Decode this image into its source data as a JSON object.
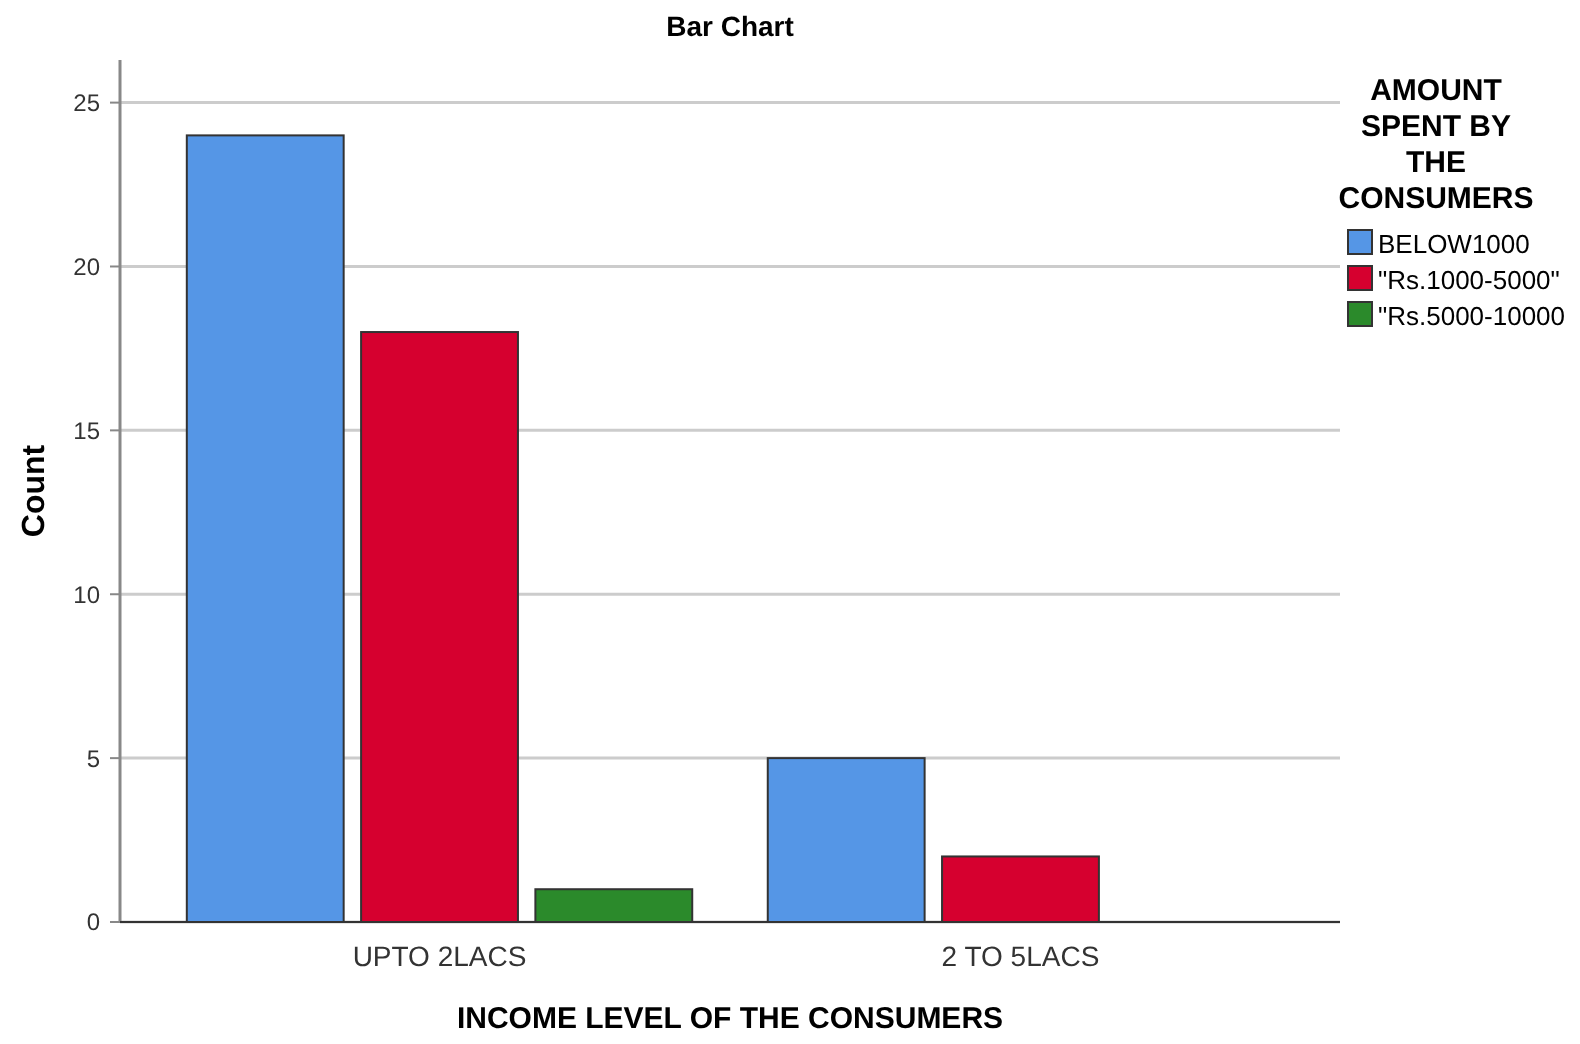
{
  "chart_data": {
    "type": "bar",
    "title": "Bar Chart",
    "xlabel": "INCOME LEVEL OF THE CONSUMERS",
    "ylabel": "Count",
    "legend_title": "AMOUNT SPENT BY THE CONSUMERS",
    "categories": [
      "UPTO 2LACS",
      "2 TO 5LACS"
    ],
    "series": [
      {
        "name": "BELOW1000",
        "color": "#5596e6",
        "values": [
          24,
          5
        ]
      },
      {
        "name": "\"Rs.1000-5000\"",
        "color": "#d6002f",
        "values": [
          18,
          2
        ]
      },
      {
        "name": "\"Rs.5000-10000",
        "color": "#2b8a2b",
        "values": [
          1,
          null
        ]
      }
    ],
    "ylim": [
      0,
      26.3
    ],
    "yticks": [
      0,
      5,
      10,
      15,
      20,
      25
    ],
    "grid": "y",
    "legend": "right"
  }
}
